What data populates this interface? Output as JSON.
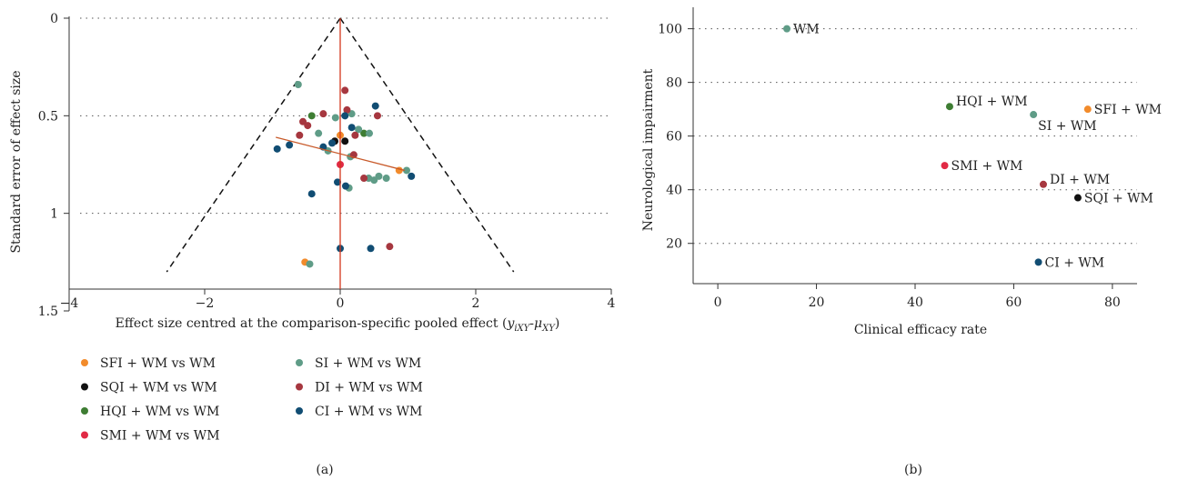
{
  "colors": {
    "SFI + WM": "#f28b2b",
    "SQI + WM": "#111111",
    "HQI + WM": "#3e7d33",
    "SMI + WM": "#e12a45",
    "SI + WM": "#5f9c87",
    "DI + WM": "#a6373f",
    "CI + WM": "#114d73",
    "WM": "#5f9c87",
    "pooled_line": "#d4351c",
    "fit_line": "#c85a2a",
    "funnel": "#111111"
  },
  "chart_data": [
    {
      "type": "scatter",
      "panel_label": "(a)",
      "ylabel": "Standard error of effect size",
      "xlabel_main": "Effect size centred at the comparison-specific pooled effect (",
      "xlabel_y": "y",
      "xlabel_y_sub": "iXY",
      "xlabel_dash": "-",
      "xlabel_mu": "μ",
      "xlabel_mu_sub": "XY",
      "xlabel_close": ")",
      "xlim": [
        -4,
        4
      ],
      "ylim": [
        0,
        1.5
      ],
      "y_reversed": true,
      "xticks": [
        -4,
        -2,
        0,
        2,
        4
      ],
      "yticks": [
        0,
        0.5,
        1,
        1.5
      ],
      "xtick_labels": [
        "−4",
        "−2",
        "0",
        "2",
        "4"
      ],
      "ytick_labels": [
        "0",
        "0.5",
        "1",
        "1.5"
      ],
      "legend": [
        {
          "label": "SFI + WM vs WM",
          "group": "SFI + WM"
        },
        {
          "label": "SI + WM vs WM",
          "group": "SI + WM"
        },
        {
          "label": "SQI + WM vs WM",
          "group": "SQI + WM"
        },
        {
          "label": "DI + WM vs WM",
          "group": "DI + WM"
        },
        {
          "label": "HQI + WM vs WM",
          "group": "HQI + WM"
        },
        {
          "label": "CI + WM vs WM",
          "group": "CI + WM"
        },
        {
          "label": "SMI + WM vs WM",
          "group": "SMI + WM"
        }
      ],
      "funnel": {
        "apex": [
          0,
          0
        ],
        "left_base": [
          -2.56,
          1.3
        ],
        "right_base": [
          2.56,
          1.3
        ]
      },
      "fit_line": {
        "x": [
          -0.95,
          0.95
        ],
        "y": [
          0.61,
          0.78
        ]
      },
      "points": [
        {
          "group": "SFI + WM",
          "x": 0.0,
          "y": 0.6
        },
        {
          "group": "SFI + WM",
          "x": 0.87,
          "y": 0.78
        },
        {
          "group": "SFI + WM",
          "x": -0.52,
          "y": 1.25
        },
        {
          "group": "SQI + WM",
          "x": -0.08,
          "y": 0.63
        },
        {
          "group": "SQI + WM",
          "x": 0.07,
          "y": 0.63
        },
        {
          "group": "HQI + WM",
          "x": -0.42,
          "y": 0.5
        },
        {
          "group": "HQI + WM",
          "x": 0.35,
          "y": 0.59
        },
        {
          "group": "SMI + WM",
          "x": 0.0,
          "y": 0.75
        },
        {
          "group": "SI + WM",
          "x": -0.62,
          "y": 0.34
        },
        {
          "group": "SI + WM",
          "x": -0.07,
          "y": 0.51
        },
        {
          "group": "SI + WM",
          "x": 0.17,
          "y": 0.49
        },
        {
          "group": "SI + WM",
          "x": -0.32,
          "y": 0.59
        },
        {
          "group": "SI + WM",
          "x": 0.27,
          "y": 0.57
        },
        {
          "group": "SI + WM",
          "x": 0.43,
          "y": 0.59
        },
        {
          "group": "SI + WM",
          "x": -0.18,
          "y": 0.68
        },
        {
          "group": "SI + WM",
          "x": 0.15,
          "y": 0.71
        },
        {
          "group": "SI + WM",
          "x": 0.42,
          "y": 0.82
        },
        {
          "group": "SI + WM",
          "x": 0.5,
          "y": 0.83
        },
        {
          "group": "SI + WM",
          "x": 0.57,
          "y": 0.81
        },
        {
          "group": "SI + WM",
          "x": 0.68,
          "y": 0.82
        },
        {
          "group": "SI + WM",
          "x": 0.98,
          "y": 0.78
        },
        {
          "group": "SI + WM",
          "x": 0.13,
          "y": 0.87
        },
        {
          "group": "SI + WM",
          "x": -0.45,
          "y": 1.26
        },
        {
          "group": "DI + WM",
          "x": -0.25,
          "y": 0.49
        },
        {
          "group": "DI + WM",
          "x": 0.07,
          "y": 0.37
        },
        {
          "group": "DI + WM",
          "x": 0.1,
          "y": 0.47
        },
        {
          "group": "DI + WM",
          "x": 0.55,
          "y": 0.5
        },
        {
          "group": "DI + WM",
          "x": -0.55,
          "y": 0.53
        },
        {
          "group": "DI + WM",
          "x": -0.48,
          "y": 0.55
        },
        {
          "group": "DI + WM",
          "x": -0.6,
          "y": 0.6
        },
        {
          "group": "DI + WM",
          "x": 0.22,
          "y": 0.6
        },
        {
          "group": "DI + WM",
          "x": 0.2,
          "y": 0.7
        },
        {
          "group": "DI + WM",
          "x": 0.35,
          "y": 0.82
        },
        {
          "group": "DI + WM",
          "x": 0.73,
          "y": 1.17
        },
        {
          "group": "CI + WM",
          "x": 0.52,
          "y": 0.45
        },
        {
          "group": "CI + WM",
          "x": 0.07,
          "y": 0.5
        },
        {
          "group": "CI + WM",
          "x": 0.17,
          "y": 0.56
        },
        {
          "group": "CI + WM",
          "x": -0.12,
          "y": 0.64
        },
        {
          "group": "CI + WM",
          "x": -0.25,
          "y": 0.66
        },
        {
          "group": "CI + WM",
          "x": -0.75,
          "y": 0.65
        },
        {
          "group": "CI + WM",
          "x": -0.93,
          "y": 0.67
        },
        {
          "group": "CI + WM",
          "x": -0.04,
          "y": 0.84
        },
        {
          "group": "CI + WM",
          "x": 0.08,
          "y": 0.86
        },
        {
          "group": "CI + WM",
          "x": -0.42,
          "y": 0.9
        },
        {
          "group": "CI + WM",
          "x": 1.05,
          "y": 0.81
        },
        {
          "group": "CI + WM",
          "x": 0.0,
          "y": 1.18
        },
        {
          "group": "CI + WM",
          "x": 0.45,
          "y": 1.18
        }
      ]
    },
    {
      "type": "scatter",
      "panel_label": "(b)",
      "xlabel": "Clinical efficacy rate",
      "ylabel": "Neurological impairment",
      "xlim": [
        -5,
        85
      ],
      "ylim": [
        5,
        108
      ],
      "xticks": [
        0,
        20,
        40,
        60,
        80
      ],
      "yticks": [
        20,
        40,
        60,
        80,
        100
      ],
      "xtick_labels": [
        "0",
        "20",
        "40",
        "60",
        "80"
      ],
      "ytick_labels": [
        "20",
        "40",
        "60",
        "80",
        "100"
      ],
      "points": [
        {
          "label": "WM",
          "x": 14,
          "y": 100,
          "label_pos": "right"
        },
        {
          "label": "HQI + WM",
          "x": 47,
          "y": 71,
          "label_pos": "upper-right"
        },
        {
          "label": "SFI + WM",
          "x": 75,
          "y": 70,
          "label_pos": "right"
        },
        {
          "label": "SI + WM",
          "x": 64,
          "y": 68,
          "label_pos": "lower-right"
        },
        {
          "label": "SMI + WM",
          "x": 46,
          "y": 49,
          "label_pos": "right"
        },
        {
          "label": "DI + WM",
          "x": 66,
          "y": 42,
          "label_pos": "upper-right"
        },
        {
          "label": "SQI + WM",
          "x": 73,
          "y": 37,
          "label_pos": "right"
        },
        {
          "label": "CI + WM",
          "x": 65,
          "y": 13,
          "label_pos": "right"
        }
      ]
    }
  ]
}
